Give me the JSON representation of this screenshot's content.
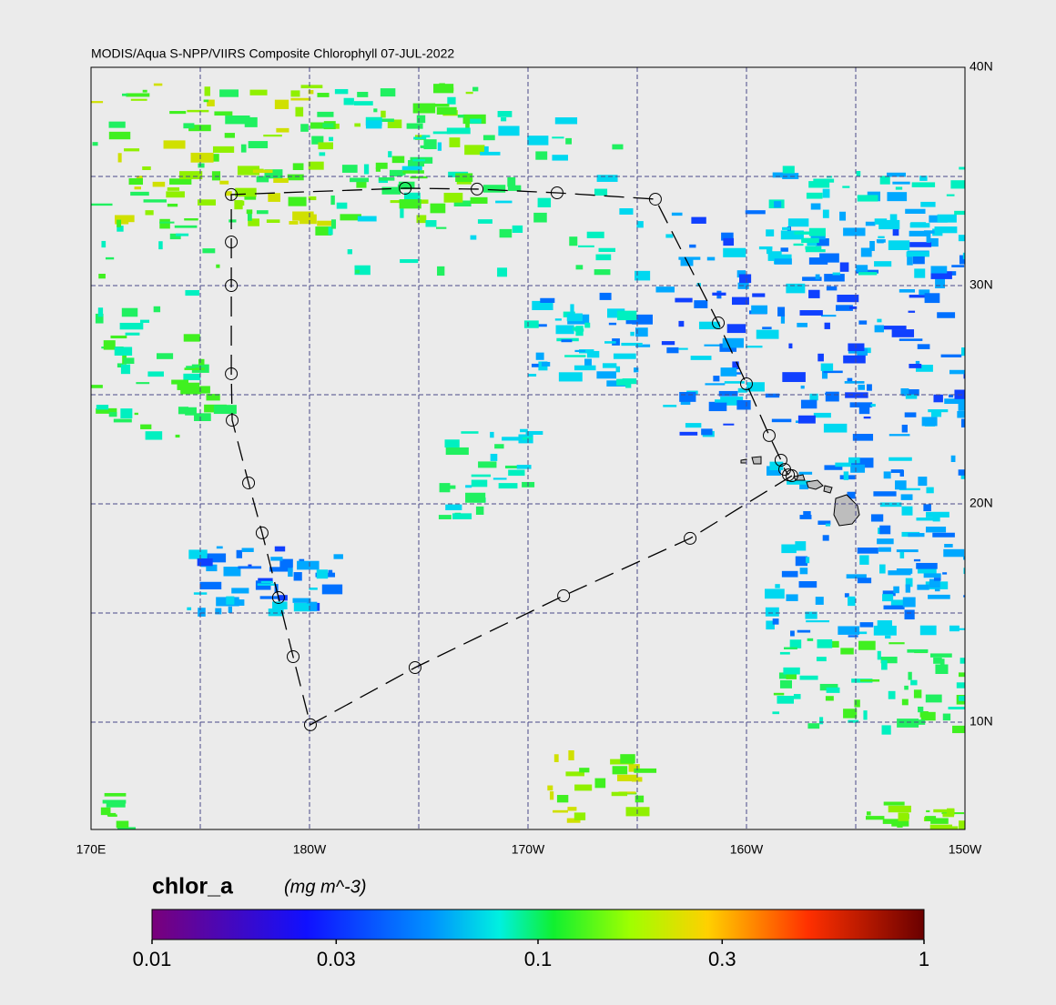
{
  "map": {
    "title": "MODIS/Aqua S-NPP/VIIRS Composite Chlorophyll 07-JUL-2022",
    "lon_range": [
      170,
      210
    ],
    "lat_range": [
      5,
      40
    ],
    "lon_ticks": [
      {
        "value": 170,
        "label": "170E"
      },
      {
        "value": 180,
        "label": "180W"
      },
      {
        "value": 190,
        "label": "170W"
      },
      {
        "value": 200,
        "label": "160W"
      },
      {
        "value": 210,
        "label": "150W"
      }
    ],
    "lat_ticks": [
      {
        "value": 10,
        "label": "10N"
      },
      {
        "value": 20,
        "label": "20N"
      },
      {
        "value": 30,
        "label": "30N"
      },
      {
        "value": 40,
        "label": "40N"
      }
    ],
    "track": {
      "lon": [
        202.08,
        197.42,
        191.63,
        184.83,
        180.04,
        179.25,
        178.58,
        177.83,
        177.21,
        176.46,
        176.42,
        176.42,
        176.42,
        176.42,
        184.38,
        187.67,
        191.33,
        195.83,
        198.71,
        200.0,
        201.04,
        201.58,
        201.75,
        201.92
      ],
      "lat": [
        21.29,
        18.42,
        15.79,
        12.5,
        9.88,
        13.0,
        15.71,
        18.67,
        20.96,
        23.83,
        25.96,
        30.0,
        32.0,
        34.17,
        34.46,
        34.42,
        34.25,
        33.96,
        28.29,
        25.5,
        23.13,
        22.0,
        21.58,
        21.33
      ]
    },
    "colorbar": {
      "variable": "chlor_a",
      "units": "(mg m^-3)",
      "range": [
        0.01,
        1
      ],
      "log": true,
      "ticks": [
        0.01,
        0.03,
        0.1,
        0.3,
        1
      ]
    }
  }
}
